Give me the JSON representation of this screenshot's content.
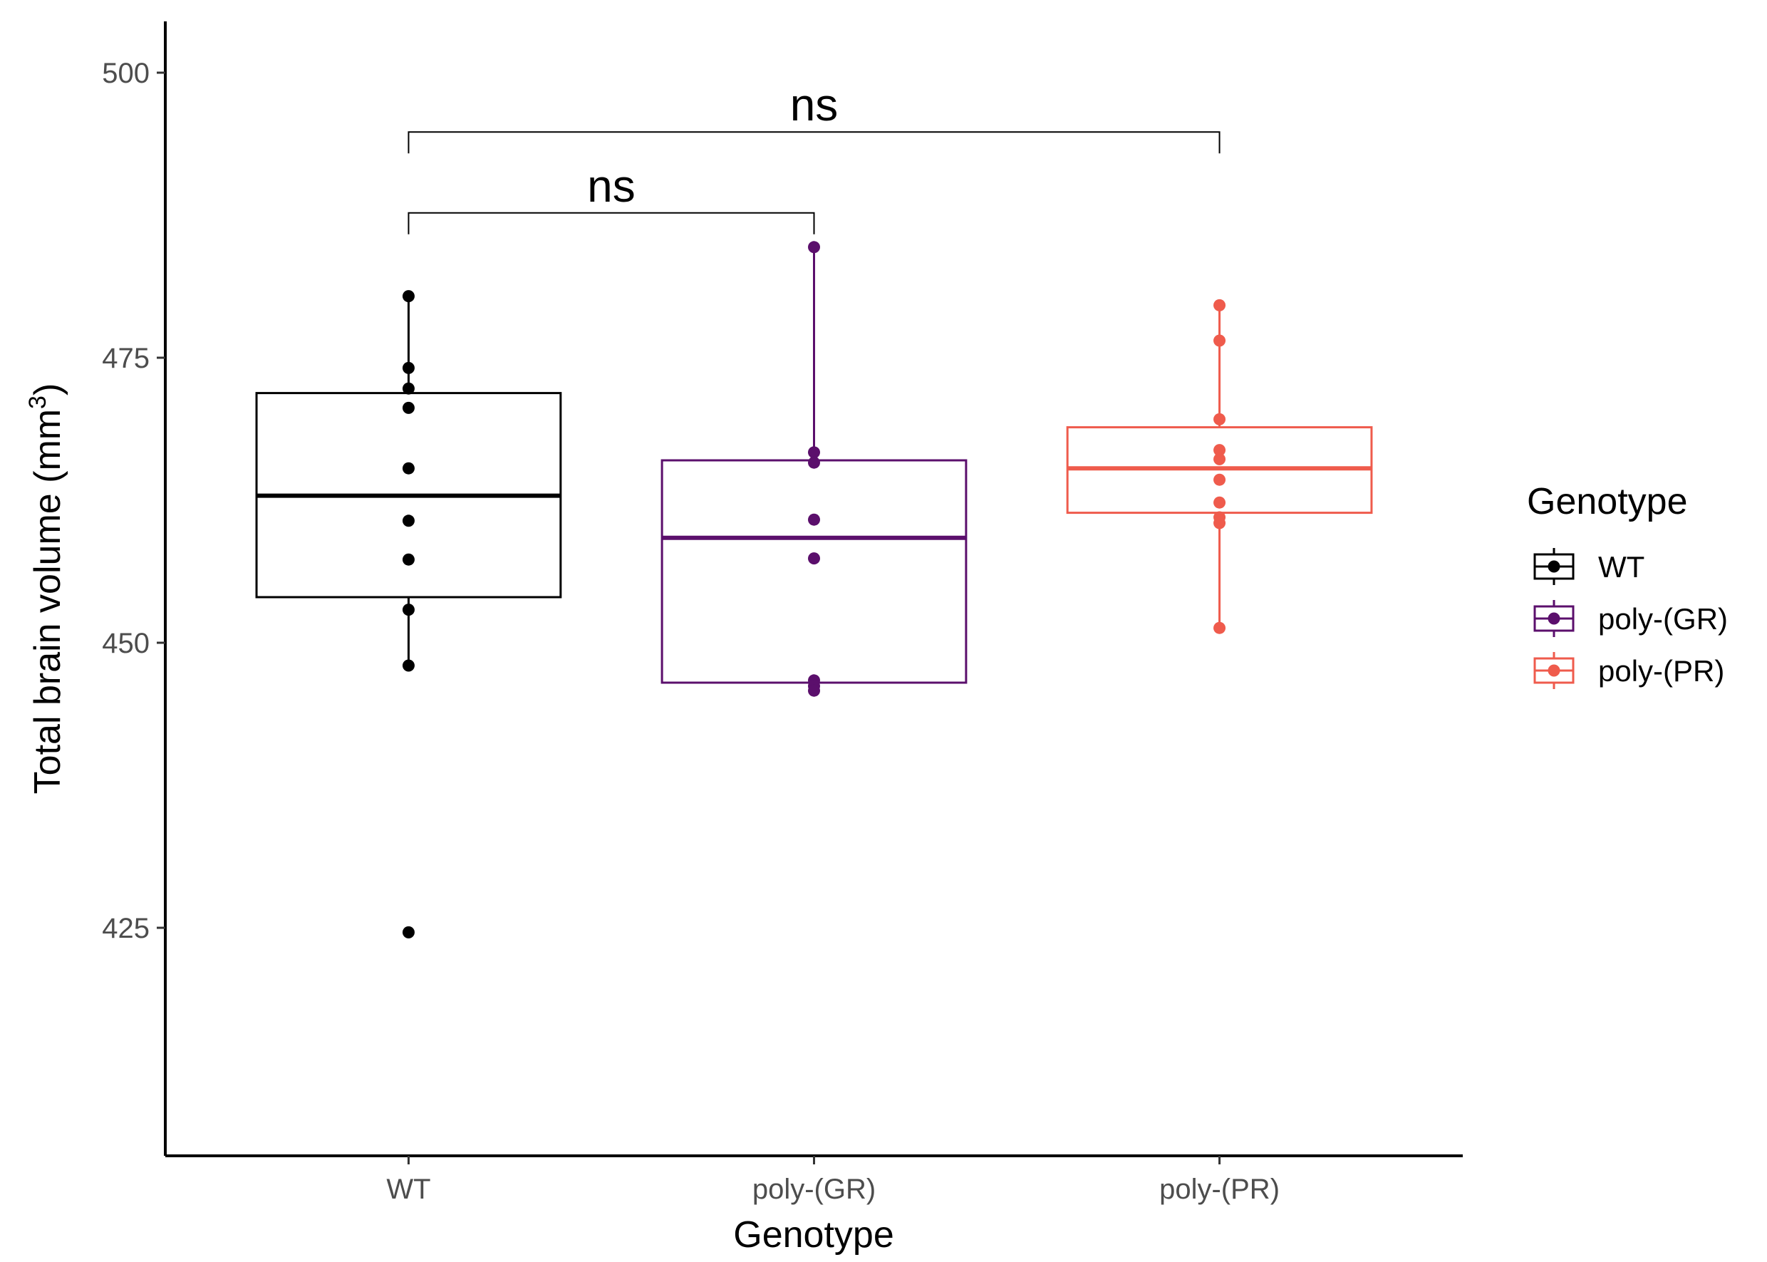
{
  "chart_data": {
    "type": "box",
    "xlabel": "Genotype",
    "ylabel": "Total brain volume (mm",
    "ylabel_superscript": "3",
    "ylabel_suffix": ")",
    "ylim": [
      405,
      504.5
    ],
    "yticks": [
      425,
      450,
      475,
      500
    ],
    "categories": [
      "WT",
      "poly-(GR)",
      "poly-(PR)"
    ],
    "series": [
      {
        "name": "WT",
        "color": "#000000",
        "box": {
          "q1": 454.0,
          "median": 462.9,
          "q3": 471.9,
          "whisker_low": 448.0,
          "whisker_high": 480.4
        },
        "points": [
          480.4,
          474.1,
          472.3,
          470.6,
          465.3,
          460.7,
          457.3,
          452.9,
          448.0,
          424.6
        ]
      },
      {
        "name": "poly-(GR)",
        "color": "#5b0f6c",
        "box": {
          "q1": 446.5,
          "median": 459.2,
          "q3": 466.0,
          "whisker_low": 445.8,
          "whisker_high": 484.7
        },
        "points": [
          484.7,
          466.7,
          465.8,
          460.8,
          457.4,
          446.7,
          446.2,
          445.8
        ]
      },
      {
        "name": "poly-(PR)",
        "color": "#ef5b4c",
        "box": {
          "q1": 461.4,
          "median": 465.3,
          "q3": 468.9,
          "whisker_low": 451.3,
          "whisker_high": 479.6
        },
        "points": [
          479.6,
          476.5,
          469.6,
          466.9,
          466.1,
          464.3,
          462.3,
          461.0,
          460.5,
          451.3
        ]
      }
    ],
    "comparisons": [
      {
        "from": "WT",
        "to": "poly-(GR)",
        "y": 487.7,
        "label": "ns"
      },
      {
        "from": "WT",
        "to": "poly-(PR)",
        "y": 494.8,
        "label": "ns"
      }
    ],
    "legend": {
      "title": "Genotype",
      "position": "right",
      "items": [
        "WT",
        "poly-(GR)",
        "poly-(PR)"
      ]
    },
    "grid": false
  }
}
